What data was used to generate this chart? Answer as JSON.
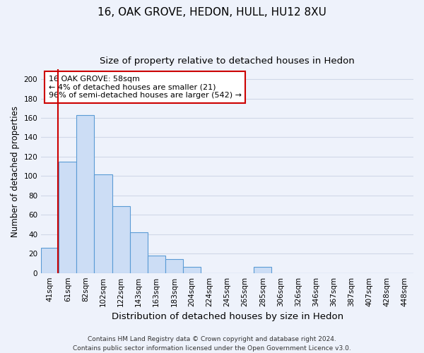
{
  "title1": "16, OAK GROVE, HEDON, HULL, HU12 8XU",
  "title2": "Size of property relative to detached houses in Hedon",
  "xlabel": "Distribution of detached houses by size in Hedon",
  "ylabel": "Number of detached properties",
  "categories": [
    "41sqm",
    "61sqm",
    "82sqm",
    "102sqm",
    "122sqm",
    "143sqm",
    "163sqm",
    "183sqm",
    "204sqm",
    "224sqm",
    "245sqm",
    "265sqm",
    "285sqm",
    "306sqm",
    "326sqm",
    "346sqm",
    "367sqm",
    "387sqm",
    "407sqm",
    "428sqm",
    "448sqm"
  ],
  "values": [
    26,
    115,
    163,
    102,
    69,
    42,
    18,
    14,
    6,
    0,
    0,
    0,
    6,
    0,
    0,
    0,
    0,
    0,
    0,
    0,
    0
  ],
  "bar_color": "#ccddf5",
  "bar_edge_color": "#5b9bd5",
  "ylim": [
    0,
    210
  ],
  "yticks": [
    0,
    20,
    40,
    60,
    80,
    100,
    120,
    140,
    160,
    180,
    200
  ],
  "red_line_x": -0.25,
  "annotation_text": "16 OAK GROVE: 58sqm\n← 4% of detached houses are smaller (21)\n96% of semi-detached houses are larger (542) →",
  "annotation_box_color": "#ffffff",
  "annotation_box_edge": "#cc0000",
  "footnote": "Contains HM Land Registry data © Crown copyright and database right 2024.\nContains public sector information licensed under the Open Government Licence v3.0.",
  "background_color": "#eef2fb",
  "grid_color": "#d0d8e8",
  "title1_fontsize": 11,
  "title2_fontsize": 9.5,
  "xlabel_fontsize": 9.5,
  "ylabel_fontsize": 8.5,
  "tick_fontsize": 7.5,
  "footnote_fontsize": 6.5,
  "ann_fontsize": 8
}
